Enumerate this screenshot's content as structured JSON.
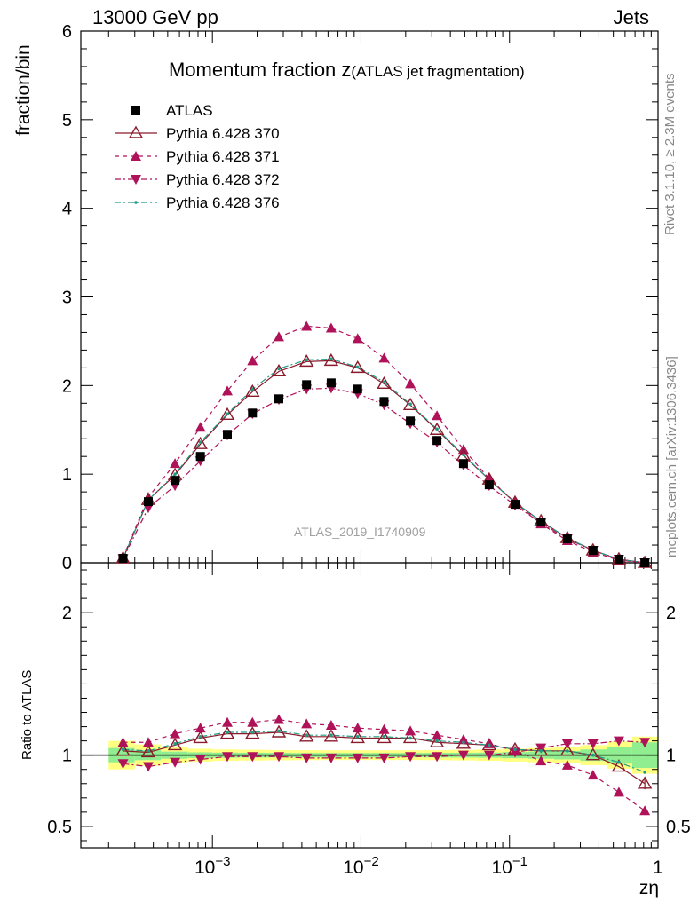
{
  "header": {
    "left": "13000 GeV pp",
    "right": "Jets"
  },
  "title": {
    "main": "Momentum fraction z",
    "sub": "(ATLAS jet fragmentation)"
  },
  "side": {
    "rivet": "Rivet 3.1.10, ≥ 2.3M events",
    "mcplots": "mcplots.cern.ch [arXiv:1306.3436]"
  },
  "watermark": "ATLAS_2019_I1740909",
  "xlabel": "zη",
  "colors": {
    "atlas": "#000000",
    "py370": "#8b1a2b",
    "py371": "#b0125a",
    "py372": "#b0125a",
    "py376": "#1e9b84",
    "band_green": "#90ee90",
    "band_yellow": "#ffff80"
  },
  "chart_data": [
    {
      "type": "scatter",
      "xscale": "log",
      "xlim": [
        0.00013,
        1
      ],
      "ylim": [
        0,
        6
      ],
      "ylabel": "fraction/bin",
      "yticks": [
        "0",
        "1",
        "2",
        "3",
        "4",
        "5",
        "6"
      ],
      "xticks": [
        "10^-3",
        "10^-2",
        "10^-1",
        "1"
      ],
      "legend_position": "top-left",
      "x": [
        0.00025,
        0.00037,
        0.00056,
        0.00083,
        0.00126,
        0.00186,
        0.0028,
        0.0043,
        0.0063,
        0.0095,
        0.0143,
        0.0215,
        0.0325,
        0.049,
        0.073,
        0.109,
        0.163,
        0.245,
        0.365,
        0.545,
        0.815
      ],
      "series": [
        {
          "name": "ATLAS",
          "style": "square",
          "values": [
            0.05,
            0.69,
            0.93,
            1.2,
            1.45,
            1.69,
            1.85,
            2.01,
            2.03,
            1.96,
            1.82,
            1.6,
            1.38,
            1.12,
            0.88,
            0.66,
            0.46,
            0.27,
            0.14,
            0.04,
            0.0
          ]
        },
        {
          "name": "Pythia 6.428 370",
          "style": "open-triangle-solid",
          "values": [
            0.05,
            0.71,
            0.99,
            1.34,
            1.67,
            1.93,
            2.16,
            2.27,
            2.28,
            2.2,
            2.02,
            1.78,
            1.5,
            1.21,
            0.94,
            0.68,
            0.47,
            0.28,
            0.14,
            0.04,
            0.0
          ]
        },
        {
          "name": "Pythia 6.428 371",
          "style": "triangle-up-dashed",
          "values": [
            0.06,
            0.74,
            1.12,
            1.53,
            1.94,
            2.28,
            2.55,
            2.67,
            2.65,
            2.53,
            2.31,
            2.02,
            1.66,
            1.28,
            0.95,
            0.68,
            0.44,
            0.25,
            0.12,
            0.03,
            0.0
          ]
        },
        {
          "name": "Pythia 6.428 372",
          "style": "triangle-down-dashdot",
          "values": [
            0.045,
            0.62,
            0.87,
            1.15,
            1.44,
            1.68,
            1.84,
            1.96,
            1.97,
            1.91,
            1.78,
            1.57,
            1.36,
            1.1,
            0.87,
            0.65,
            0.45,
            0.27,
            0.14,
            0.04,
            0.0
          ]
        },
        {
          "name": "Pythia 6.428 376",
          "style": "dot-dashdot",
          "values": [
            0.05,
            0.71,
            1.0,
            1.36,
            1.68,
            1.96,
            2.19,
            2.29,
            2.3,
            2.21,
            2.04,
            1.79,
            1.51,
            1.22,
            0.94,
            0.68,
            0.47,
            0.28,
            0.14,
            0.04,
            0.0
          ]
        }
      ]
    },
    {
      "type": "line",
      "xscale": "log",
      "xlim": [
        0.00013,
        1
      ],
      "ylim": [
        0.35,
        2.35
      ],
      "ylabel": "Ratio to ATLAS",
      "yticks": [
        "0.5",
        "1",
        "2"
      ],
      "x": [
        0.00025,
        0.00037,
        0.00056,
        0.00083,
        0.00126,
        0.00186,
        0.0028,
        0.0043,
        0.0063,
        0.0095,
        0.0143,
        0.0215,
        0.0325,
        0.049,
        0.073,
        0.109,
        0.163,
        0.245,
        0.365,
        0.545,
        0.815
      ],
      "band_edges": [
        0.0002,
        0.0003,
        0.00045,
        0.00068,
        0.001,
        0.0015,
        0.0023,
        0.0034,
        0.0052,
        0.0078,
        0.0117,
        0.0176,
        0.0264,
        0.0397,
        0.0596,
        0.0894,
        0.134,
        0.2,
        0.3,
        0.45,
        0.67,
        1.0
      ],
      "band_green_halfwidth": [
        0.05,
        0.035,
        0.025,
        0.02,
        0.018,
        0.017,
        0.016,
        0.015,
        0.015,
        0.015,
        0.015,
        0.015,
        0.016,
        0.017,
        0.018,
        0.022,
        0.025,
        0.03,
        0.04,
        0.06,
        0.09
      ],
      "band_yellow_halfwidth": [
        0.1,
        0.075,
        0.055,
        0.045,
        0.04,
        0.038,
        0.036,
        0.035,
        0.034,
        0.034,
        0.034,
        0.034,
        0.035,
        0.037,
        0.04,
        0.045,
        0.05,
        0.055,
        0.07,
        0.095,
        0.13
      ],
      "series": [
        {
          "name": "Pythia 6.428 370",
          "values": [
            1.03,
            1.02,
            1.07,
            1.12,
            1.15,
            1.15,
            1.16,
            1.13,
            1.13,
            1.12,
            1.12,
            1.12,
            1.09,
            1.08,
            1.07,
            1.04,
            1.03,
            1.03,
            1.0,
            0.92,
            0.8
          ]
        },
        {
          "name": "Pythia 6.428 371",
          "values": [
            1.09,
            1.09,
            1.15,
            1.19,
            1.23,
            1.23,
            1.25,
            1.22,
            1.21,
            1.19,
            1.18,
            1.17,
            1.14,
            1.11,
            1.08,
            1.03,
            0.96,
            0.93,
            0.86,
            0.74,
            0.61
          ]
        },
        {
          "name": "Pythia 6.428 372",
          "values": [
            0.94,
            0.92,
            0.95,
            0.97,
            0.99,
            0.99,
            0.99,
            0.98,
            0.98,
            0.98,
            0.98,
            0.99,
            0.99,
            1.0,
            1.0,
            1.02,
            1.05,
            1.08,
            1.08,
            1.1,
            1.09
          ]
        },
        {
          "name": "Pythia 6.428 376",
          "values": [
            1.04,
            1.03,
            1.08,
            1.13,
            1.16,
            1.16,
            1.17,
            1.14,
            1.14,
            1.13,
            1.13,
            1.12,
            1.1,
            1.09,
            1.07,
            1.04,
            1.03,
            1.03,
            1.0,
            0.95,
            0.88
          ]
        }
      ]
    }
  ]
}
